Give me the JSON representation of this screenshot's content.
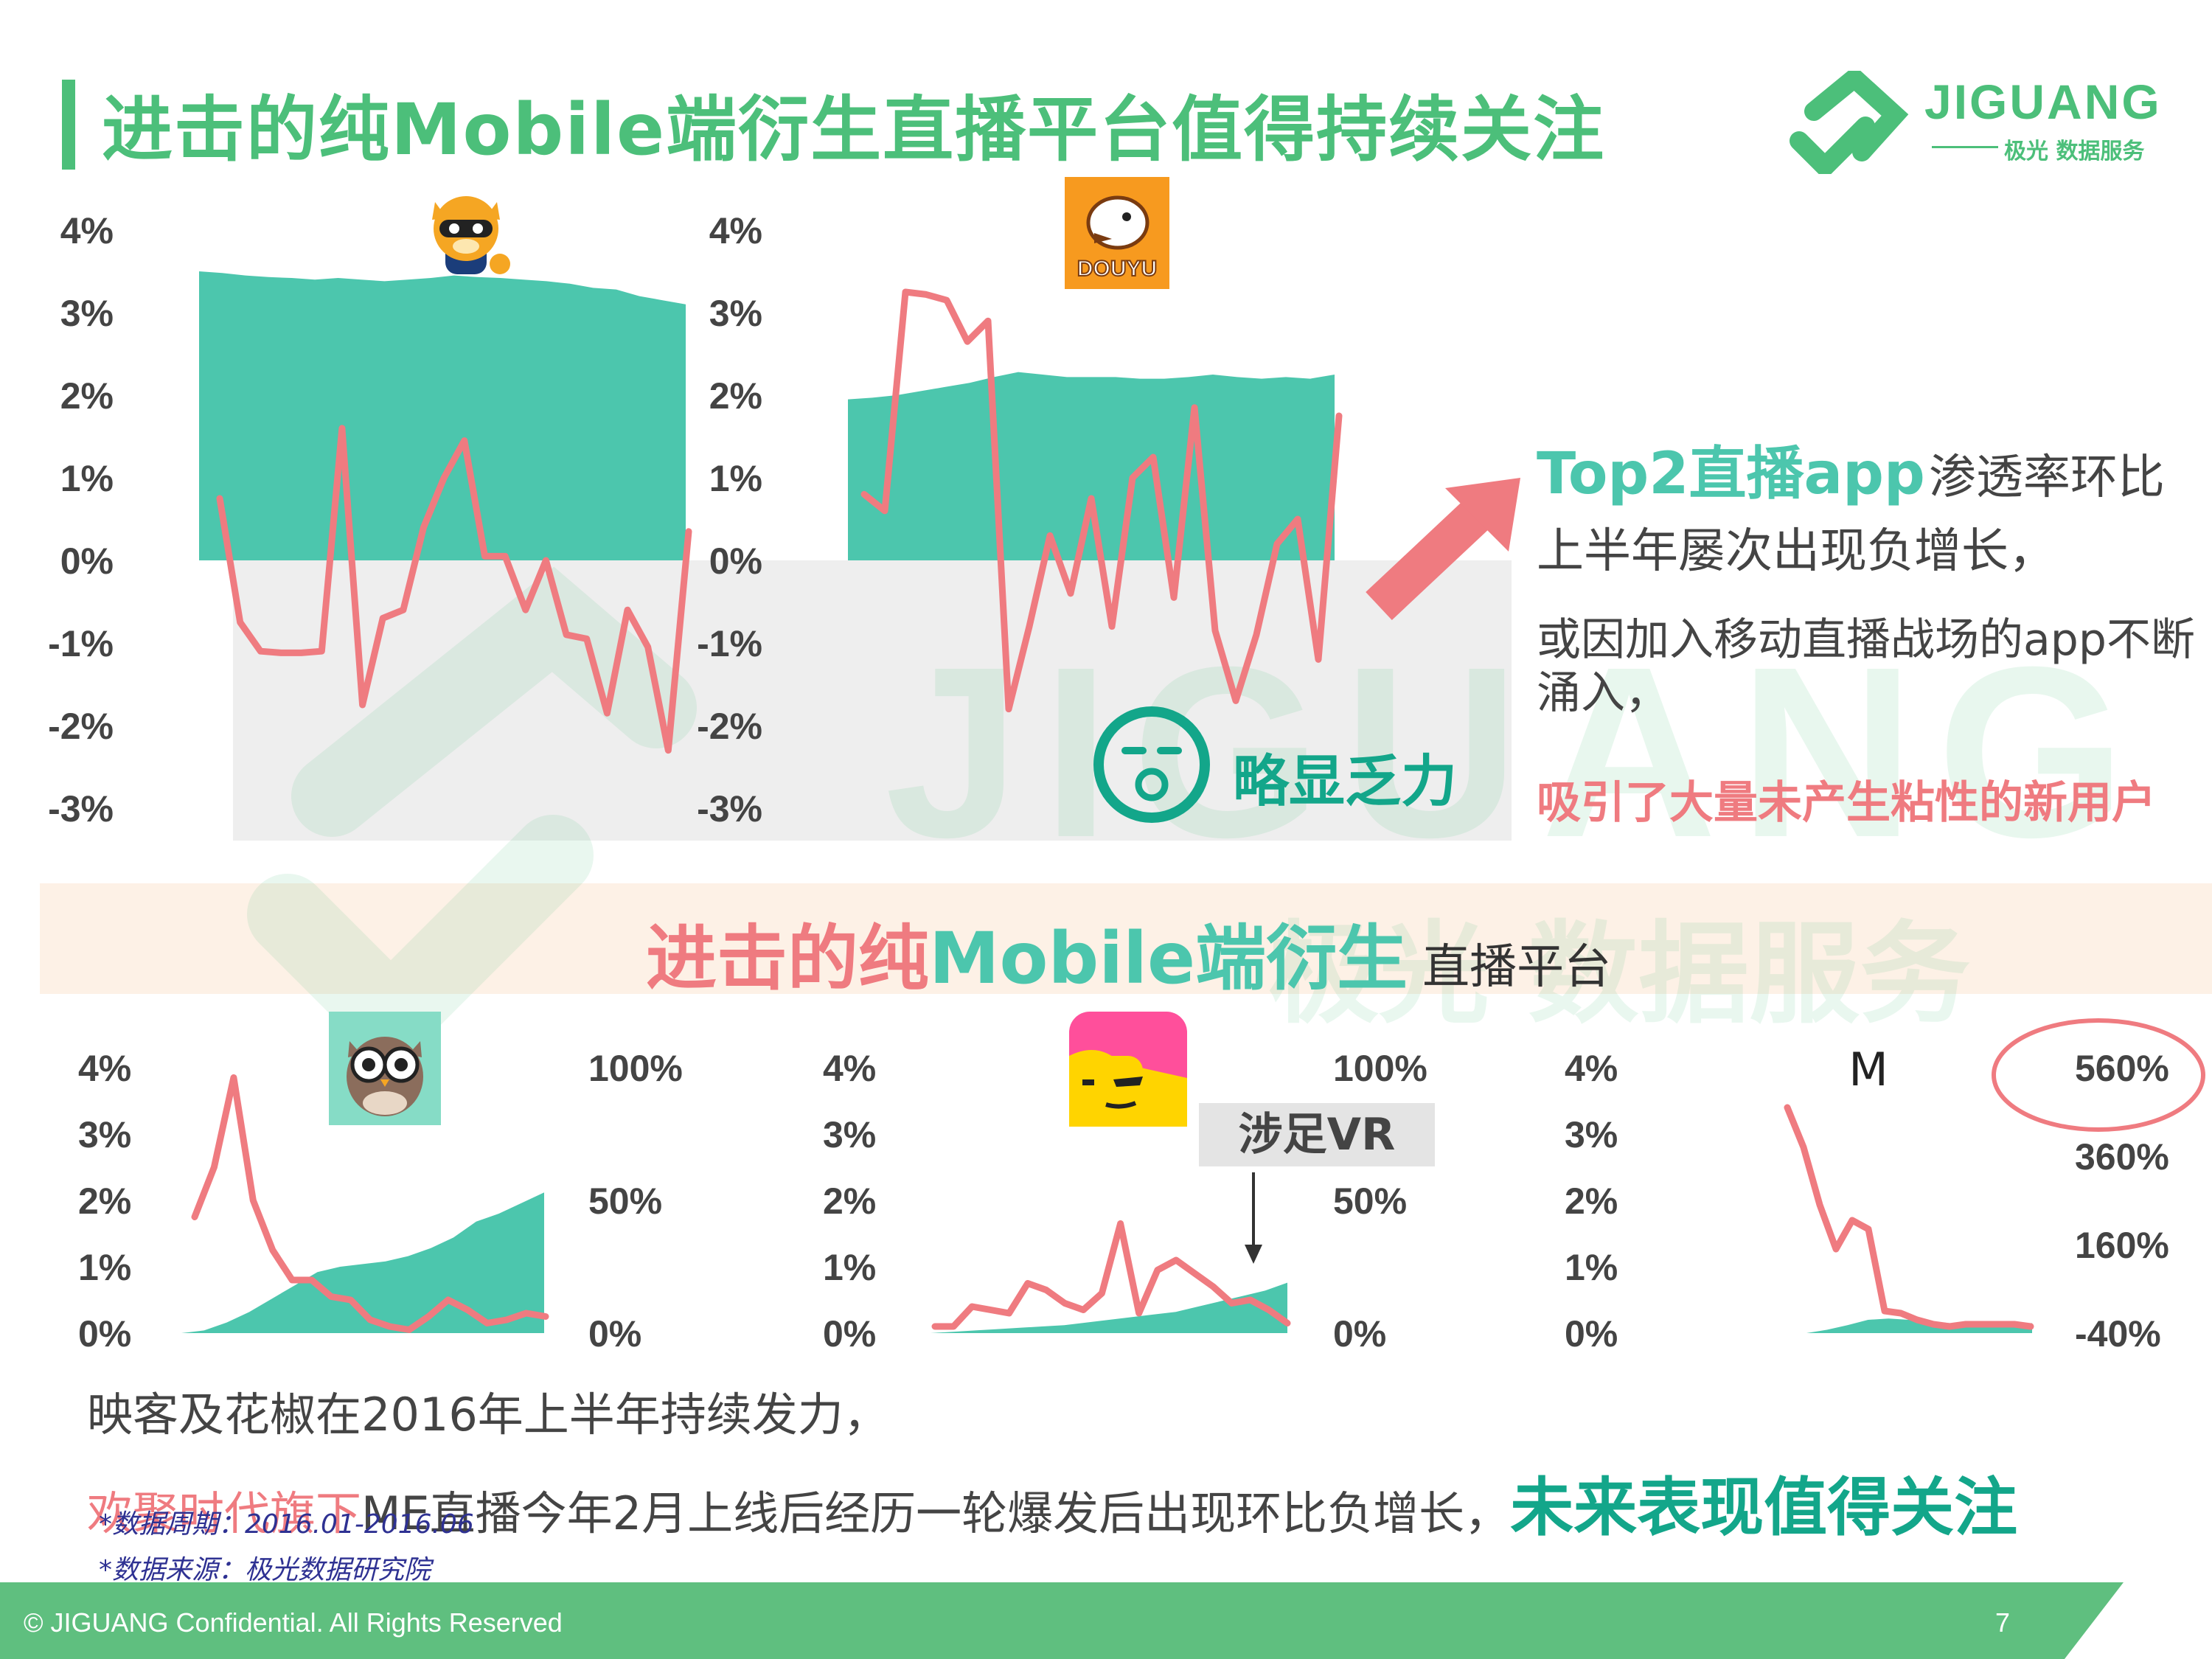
{
  "title": "进击的纯Mobile端衍生直播平台值得持续关注",
  "logo": {
    "name": "JIGUANG",
    "sub": "极光 数据服务"
  },
  "watermark": {
    "text": "JIGUANG",
    "sub": "极光 数据服务"
  },
  "icons": {
    "yy": "raccoon-mascot-icon",
    "douyu": "douyu-fish-icon",
    "inke": "owl-icon",
    "huajiao": "huajiao-face-icon",
    "me": "me-logo-icon",
    "weak": "yawn-face-icon"
  },
  "douyu_badge": "DOUYU",
  "me_mark": "M",
  "annotations": {
    "top2_bold": "Top2直播app",
    "top2_rest": "渗透率环比",
    "line2": "上半年屡次出现负增长，",
    "reason": "或因加入移动直播战场的app不断涌入，",
    "attract": "吸引了大量未产生粘性的新用户",
    "weak": "略显乏力",
    "vr": "涉足VR"
  },
  "mid_heading": {
    "red": "进击的纯",
    "green": "Mobile端衍生",
    "rest": "直播平台"
  },
  "bottom": {
    "line1": "映客及花椒在2016年上半年持续发力，",
    "line2_red": "欢聚时代旗下",
    "line2_mid": "ME直播今年2月上线后经历一轮爆发后出现环比负增长，",
    "line2_green": "未来表现值得关注"
  },
  "notes": {
    "period": "*数据周期：2016.01-2016.06",
    "source": "*数据来源：极光数据研究院"
  },
  "footer": {
    "text": "© JIGUANG Confidential. All Rights Reserved",
    "page": "7"
  },
  "colors": {
    "area": "#4cc6ad",
    "line": "#ef7b80",
    "title_green": "#4cbf7a",
    "dark_green": "#13a68a"
  },
  "chart_data": [
    {
      "type": "area",
      "name": "YY",
      "yticks": [
        "4%",
        "3%",
        "2%",
        "1%",
        "0%",
        "-1%",
        "-2%",
        "-3%"
      ],
      "ylim": [
        -3,
        4
      ],
      "series": [
        {
          "type": "area",
          "values": [
            3.5,
            3.48,
            3.45,
            3.43,
            3.42,
            3.4,
            3.42,
            3.4,
            3.38,
            3.4,
            3.42,
            3.45,
            3.43,
            3.42,
            3.4,
            3.38,
            3.35,
            3.3,
            3.28,
            3.2,
            3.15,
            3.1
          ]
        },
        {
          "type": "line",
          "values": [
            0.75,
            -0.75,
            -1.1,
            -1.12,
            -1.12,
            -1.1,
            1.6,
            -1.75,
            -0.7,
            -0.6,
            0.4,
            1.0,
            1.45,
            0.05,
            0.05,
            -0.6,
            0.0,
            -0.9,
            -0.95,
            -1.85,
            -0.6,
            -1.05,
            -2.3,
            0.35
          ]
        }
      ]
    },
    {
      "type": "area",
      "name": "斗鱼",
      "yticks": [
        "4%",
        "3%",
        "2%",
        "1%",
        "0%",
        "-1%",
        "-2%",
        "-3%"
      ],
      "ylim": [
        -3,
        4
      ],
      "series": [
        {
          "type": "area",
          "values": [
            1.95,
            1.97,
            2.0,
            2.05,
            2.1,
            2.15,
            2.22,
            2.28,
            2.25,
            2.22,
            2.22,
            2.22,
            2.2,
            2.2,
            2.22,
            2.25,
            2.22,
            2.2,
            2.22,
            2.2,
            2.25
          ]
        },
        {
          "type": "line",
          "values": [
            0.8,
            0.6,
            3.25,
            3.22,
            3.15,
            2.65,
            2.9,
            -1.8,
            -0.8,
            0.3,
            -0.4,
            0.75,
            -0.8,
            1.0,
            1.25,
            -0.45,
            1.85,
            -0.85,
            -1.7,
            -0.9,
            0.2,
            0.5,
            -1.2,
            1.75
          ]
        }
      ]
    },
    {
      "type": "area",
      "name": "映客",
      "yticks_left": [
        "4%",
        "3%",
        "2%",
        "1%",
        "0%"
      ],
      "yticks_right": [
        "100%",
        "50%",
        "0%"
      ],
      "series": [
        {
          "type": "area",
          "axis": "right",
          "values": [
            0,
            1,
            4,
            8,
            13,
            18,
            23,
            25,
            26,
            27,
            29,
            32,
            36,
            42,
            45,
            49,
            53
          ]
        },
        {
          "type": "line",
          "axis": "left",
          "values": [
            1.75,
            2.5,
            3.85,
            2.0,
            1.25,
            0.8,
            0.8,
            0.55,
            0.5,
            0.2,
            0.1,
            0.05,
            0.25,
            0.5,
            0.35,
            0.15,
            0.2,
            0.3,
            0.25
          ]
        }
      ]
    },
    {
      "type": "area",
      "name": "花椒",
      "yticks_left": [
        "4%",
        "3%",
        "2%",
        "1%",
        "0%"
      ],
      "yticks_right": [
        "100%",
        "50%",
        "0%"
      ],
      "series": [
        {
          "type": "area",
          "axis": "right",
          "values": [
            0,
            0.5,
            1,
            1.5,
            2,
            2.5,
            3,
            4,
            5,
            6,
            7,
            8,
            10,
            12,
            14,
            16,
            19
          ]
        },
        {
          "type": "line",
          "axis": "left",
          "values": [
            0.1,
            0.1,
            0.4,
            0.35,
            0.3,
            0.75,
            0.65,
            0.45,
            0.35,
            0.6,
            1.65,
            0.3,
            0.95,
            1.1,
            0.9,
            0.7,
            0.45,
            0.5,
            0.35,
            0.15
          ]
        }
      ]
    },
    {
      "type": "area",
      "name": "ME直播",
      "yticks_left": [
        "4%",
        "3%",
        "2%",
        "1%",
        "0%"
      ],
      "yticks_right": [
        "560%",
        "360%",
        "160%",
        "-40%"
      ],
      "series": [
        {
          "type": "area",
          "axis": "left",
          "values": [
            0,
            0.05,
            0.12,
            0.2,
            0.22,
            0.2,
            0.18,
            0.15,
            0.15,
            0.15,
            0.15,
            0.15
          ]
        },
        {
          "type": "line",
          "axis": "right",
          "values": [
            470,
            380,
            250,
            150,
            215,
            195,
            10,
            5,
            -10,
            -20,
            -25,
            -20,
            -20,
            -20,
            -20,
            -25
          ]
        }
      ]
    }
  ]
}
